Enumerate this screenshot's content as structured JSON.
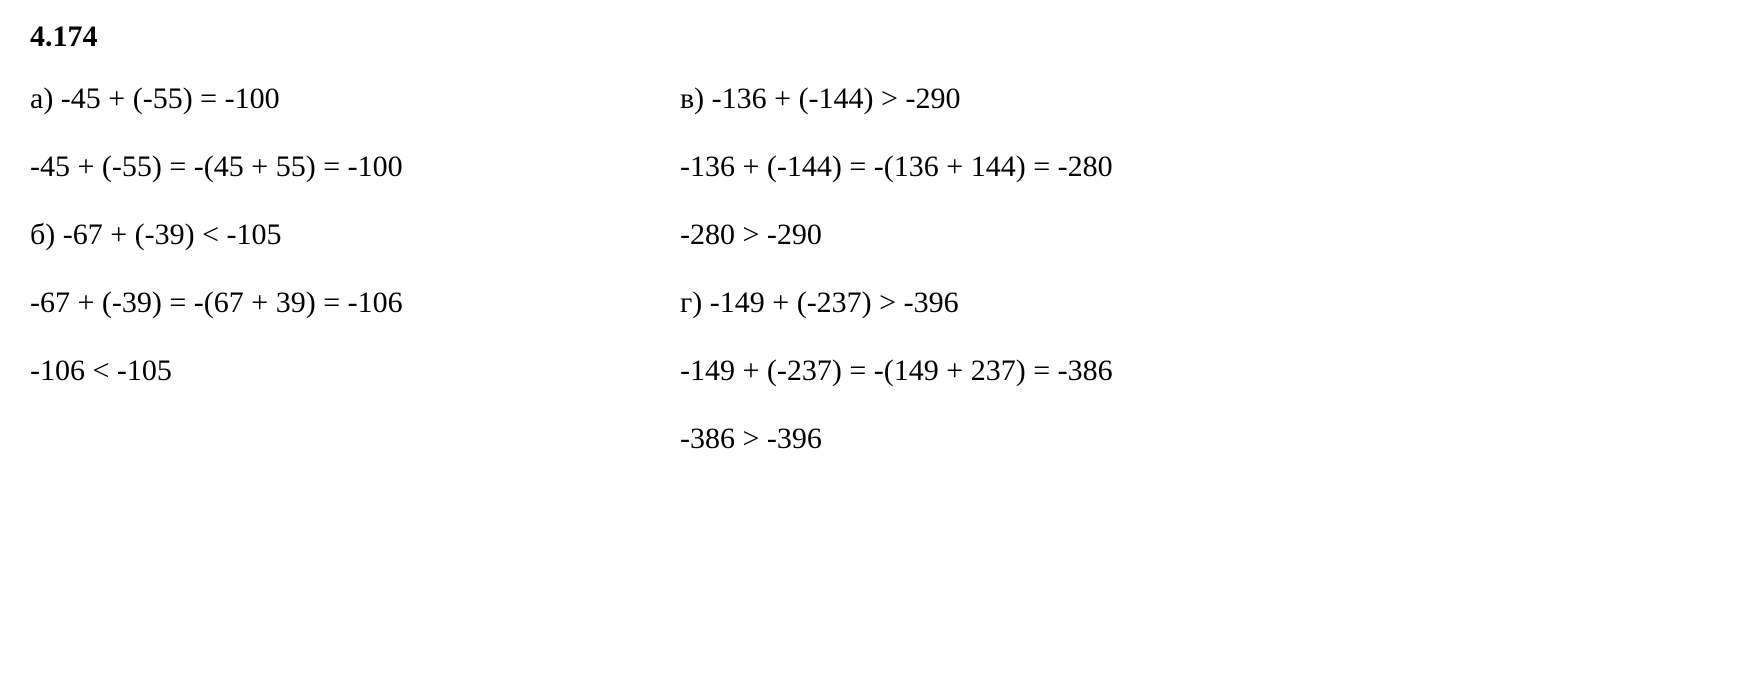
{
  "title": "4.174",
  "left": {
    "a1": "а) -45 + (-55) = -100",
    "a2": "-45 + (-55) = -(45 + 55) = -100",
    "b1": "б) -67 + (-39) < -105",
    "b2": "-67 + (-39) = -(67 + 39) = -106",
    "b3": "-106 < -105"
  },
  "right": {
    "v1": "в) -136 + (-144) > -290",
    "v2": "-136 + (-144) = -(136 + 144) = -280",
    "v3": "-280 > -290",
    "g1": "г) -149 + (-237) > -396",
    "g2": "-149 + (-237) = -(149 + 237) = -386",
    "g3": "-386 > -396"
  },
  "styling": {
    "text_color": "#000000",
    "background_color": "#ffffff",
    "title_fontsize": 30,
    "body_fontsize": 30,
    "font_family": "Times New Roman"
  }
}
